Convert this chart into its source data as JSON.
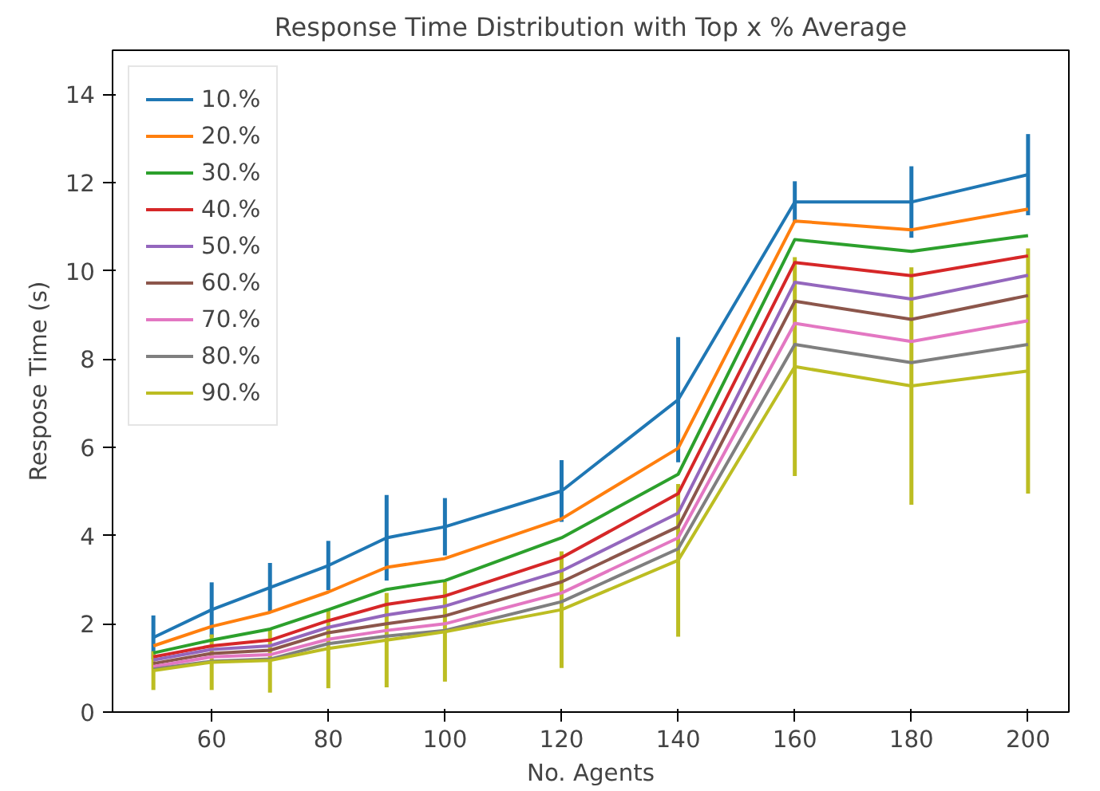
{
  "chart_data": {
    "type": "line",
    "title": "Response Time Distribution with Top x % Average",
    "xlabel": "No. Agents",
    "ylabel": "Respose Time (s)",
    "x": [
      50,
      60,
      70,
      80,
      90,
      100,
      120,
      140,
      160,
      180,
      200
    ],
    "xlim": [
      43,
      207
    ],
    "ylim": [
      0,
      15
    ],
    "xticks": [
      60,
      80,
      100,
      120,
      140,
      160,
      180,
      200
    ],
    "yticks": [
      0,
      2,
      4,
      6,
      8,
      10,
      12,
      14
    ],
    "grid": false,
    "legend": "top left",
    "marker": "none",
    "line_style": "solid",
    "series": [
      {
        "name": "10.%",
        "color": "#1f77b4",
        "values": [
          1.69,
          2.32,
          2.82,
          3.32,
          3.95,
          4.2,
          5.01,
          7.08,
          11.56,
          11.56,
          12.18
        ],
        "errors": [
          0.5,
          0.62,
          0.56,
          0.56,
          0.97,
          0.65,
          0.7,
          1.42,
          0.47,
          0.81,
          0.92
        ]
      },
      {
        "name": "20.%",
        "color": "#ff7f0e",
        "values": [
          1.5,
          1.94,
          2.26,
          2.72,
          3.28,
          3.48,
          4.38,
          5.98,
          11.13,
          10.93,
          11.4
        ]
      },
      {
        "name": "30.%",
        "color": "#2ca02c",
        "values": [
          1.34,
          1.63,
          1.88,
          2.32,
          2.78,
          2.98,
          3.95,
          5.39,
          10.71,
          10.44,
          10.8
        ]
      },
      {
        "name": "40.%",
        "color": "#d62728",
        "values": [
          1.25,
          1.5,
          1.63,
          2.07,
          2.44,
          2.63,
          3.5,
          4.95,
          10.19,
          9.89,
          10.34
        ]
      },
      {
        "name": "50.%",
        "color": "#9467bd",
        "values": [
          1.18,
          1.42,
          1.5,
          1.92,
          2.2,
          2.4,
          3.2,
          4.51,
          9.74,
          9.36,
          9.9
        ]
      },
      {
        "name": "60.%",
        "color": "#8c564b",
        "values": [
          1.1,
          1.33,
          1.4,
          1.8,
          2.0,
          2.18,
          2.95,
          4.2,
          9.31,
          8.9,
          9.44
        ]
      },
      {
        "name": "70.%",
        "color": "#e377c2",
        "values": [
          1.03,
          1.25,
          1.3,
          1.65,
          1.85,
          2.0,
          2.7,
          3.95,
          8.81,
          8.4,
          8.87
        ]
      },
      {
        "name": "80.%",
        "color": "#7f7f7f",
        "values": [
          0.97,
          1.15,
          1.2,
          1.55,
          1.72,
          1.85,
          2.5,
          3.7,
          8.33,
          7.92,
          8.33
        ]
      },
      {
        "name": "90.%",
        "color": "#bcbd22",
        "values": [
          0.94,
          1.13,
          1.17,
          1.44,
          1.63,
          1.82,
          2.32,
          3.44,
          7.83,
          7.39,
          7.73
        ],
        "errors": [
          0.44,
          0.63,
          0.73,
          0.9,
          1.07,
          1.13,
          1.32,
          1.73,
          2.48,
          2.69,
          2.78
        ]
      }
    ]
  }
}
